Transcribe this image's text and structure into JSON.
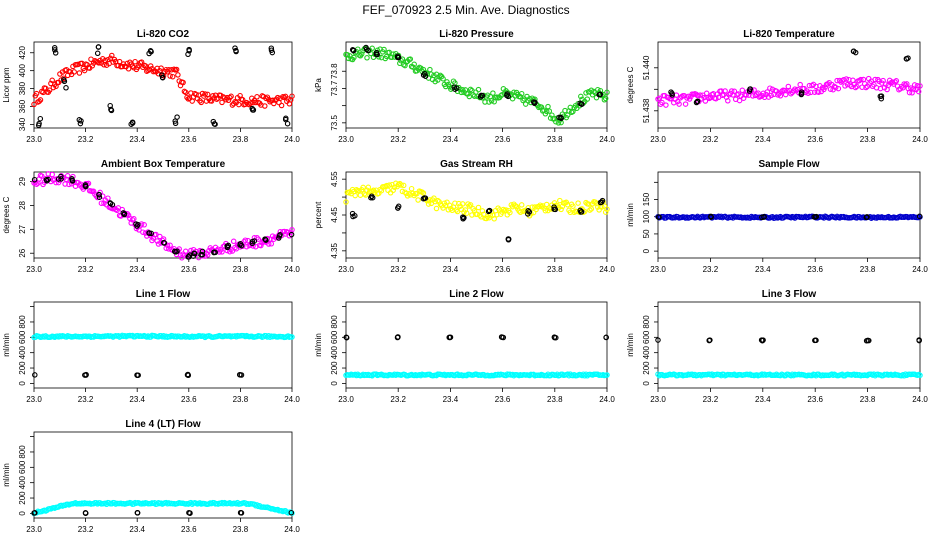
{
  "title": "FEF_070923  2.5 Min. Ave. Diagnostics",
  "colors": {
    "red": "#ff0000",
    "green": "#22cc22",
    "magenta": "#ff00ff",
    "yellow": "#ffff00",
    "blue": "#0000cc",
    "cyan": "#00ffff",
    "black": "#000000"
  },
  "chart_data": [
    {
      "type": "scatter",
      "title": "Li-820 CO2",
      "ylabel": "Licor ppm",
      "xlim": [
        23.0,
        24.0
      ],
      "ylim": [
        336,
        432
      ],
      "xticks": [
        23.0,
        23.2,
        23.4,
        23.6,
        23.8,
        24.0
      ],
      "yticks": [
        340,
        360,
        380,
        400,
        420
      ],
      "series": [
        {
          "color": "red",
          "x": [
            23.0,
            23.05,
            23.1,
            23.15,
            23.2,
            23.25,
            23.3,
            23.35,
            23.4,
            23.45,
            23.5,
            23.55,
            23.58,
            23.6,
            23.65,
            23.7,
            23.8,
            23.9,
            24.0
          ],
          "y": [
            367,
            378,
            392,
            400,
            405,
            410,
            412,
            408,
            405,
            402,
            400,
            398,
            380,
            372,
            370,
            368,
            367,
            366,
            367
          ]
        },
        {
          "color": "black",
          "x": [
            23.02,
            23.08,
            23.12,
            23.18,
            23.25,
            23.3,
            23.38,
            23.45,
            23.5,
            23.55,
            23.6,
            23.7,
            23.78,
            23.85,
            23.92,
            23.98
          ],
          "y": [
            340,
            425,
            385,
            340,
            425,
            355,
            340,
            425,
            390,
            340,
            425,
            340,
            425,
            355,
            425,
            340
          ]
        }
      ]
    },
    {
      "type": "scatter",
      "title": "Li-820 Pressure",
      "ylabel": "kPa",
      "xlim": [
        23.0,
        24.0
      ],
      "ylim": [
        73.47,
        73.97
      ],
      "xticks": [
        23.0,
        23.2,
        23.4,
        23.6,
        23.8,
        24.0
      ],
      "yticks": [
        73.5,
        73.6,
        73.7,
        73.8
      ],
      "ytick_labels": [
        "73.5",
        "",
        "73.7",
        "73.8"
      ],
      "series": [
        {
          "color": "green",
          "x": [
            23.0,
            23.05,
            23.1,
            23.15,
            23.2,
            23.25,
            23.3,
            23.35,
            23.4,
            23.45,
            23.5,
            23.55,
            23.6,
            23.65,
            23.7,
            23.75,
            23.8,
            23.82,
            23.85,
            23.9,
            23.95,
            24.0
          ],
          "y": [
            73.89,
            73.9,
            73.91,
            73.9,
            73.87,
            73.84,
            73.8,
            73.76,
            73.72,
            73.69,
            73.67,
            73.64,
            73.67,
            73.65,
            73.63,
            73.6,
            73.53,
            73.52,
            73.57,
            73.63,
            73.67,
            73.65
          ]
        },
        {
          "color": "black",
          "x": [
            23.03,
            23.08,
            23.12,
            23.2,
            23.3,
            23.42,
            23.52,
            23.62,
            23.72,
            23.82,
            23.9,
            23.97
          ],
          "y": [
            73.92,
            73.93,
            73.9,
            73.88,
            73.78,
            73.7,
            73.65,
            73.66,
            73.62,
            73.52,
            73.61,
            73.67
          ]
        }
      ]
    },
    {
      "type": "scatter",
      "title": "Li-820 Temperature",
      "ylabel": "degrees C",
      "xlim": [
        23.0,
        24.0
      ],
      "ylim": [
        51.4372,
        51.4412
      ],
      "xticks": [
        23.0,
        23.2,
        23.4,
        23.6,
        23.8,
        24.0
      ],
      "yticks": [
        51.438,
        51.439,
        51.44
      ],
      "ytick_labels": [
        "51.438",
        "",
        "51.440"
      ],
      "series": [
        {
          "color": "magenta",
          "x": [
            23.0,
            23.1,
            23.2,
            23.3,
            23.4,
            23.5,
            23.6,
            23.7,
            23.8,
            23.9,
            24.0
          ],
          "y": [
            51.4385,
            51.4385,
            51.4387,
            51.4387,
            51.4388,
            51.439,
            51.439,
            51.4393,
            51.4393,
            51.4392,
            51.439
          ]
        },
        {
          "color": "black",
          "x": [
            23.05,
            23.15,
            23.35,
            23.55,
            23.75,
            23.85,
            23.95
          ],
          "y": [
            51.4388,
            51.4384,
            51.439,
            51.4388,
            51.4408,
            51.4386,
            51.4404
          ]
        }
      ]
    },
    {
      "type": "scatter",
      "title": "Ambient Box Temperature",
      "ylabel": "degrees C",
      "xlim": [
        23.0,
        24.0
      ],
      "ylim": [
        25.8,
        29.4
      ],
      "xticks": [
        23.0,
        23.2,
        23.4,
        23.6,
        23.8,
        24.0
      ],
      "yticks": [
        26,
        27,
        28,
        29
      ],
      "series": [
        {
          "color": "magenta",
          "x": [
            23.0,
            23.05,
            23.1,
            23.15,
            23.2,
            23.25,
            23.3,
            23.35,
            23.4,
            23.45,
            23.5,
            23.55,
            23.6,
            23.62,
            23.65,
            23.7,
            23.75,
            23.8,
            23.85,
            23.9,
            23.95,
            24.0
          ],
          "y": [
            29.0,
            29.1,
            29.15,
            29.05,
            28.8,
            28.4,
            28.0,
            27.6,
            27.2,
            26.8,
            26.4,
            26.1,
            25.9,
            25.95,
            26.0,
            26.1,
            26.25,
            26.35,
            26.45,
            26.55,
            26.7,
            26.8
          ]
        },
        {
          "color": "black",
          "x": [
            23.0,
            23.05,
            23.1,
            23.15,
            23.2,
            23.25,
            23.3,
            23.35,
            23.4,
            23.45,
            23.5,
            23.55,
            23.6,
            23.62,
            23.65,
            23.7,
            23.75,
            23.8,
            23.85,
            23.9,
            23.95,
            24.0
          ],
          "y": [
            29.0,
            29.1,
            29.15,
            29.05,
            28.8,
            28.4,
            28.0,
            27.6,
            27.2,
            26.8,
            26.4,
            26.1,
            25.9,
            25.95,
            26.0,
            26.1,
            26.25,
            26.35,
            26.45,
            26.55,
            26.7,
            26.8
          ]
        }
      ]
    },
    {
      "type": "scatter",
      "title": "Gas Stream RH",
      "ylabel": "percent",
      "xlim": [
        23.0,
        24.0
      ],
      "ylim": [
        4.33,
        4.57
      ],
      "xticks": [
        23.0,
        23.2,
        23.4,
        23.6,
        23.8,
        24.0
      ],
      "yticks": [
        4.35,
        4.4,
        4.45,
        4.5,
        4.55
      ],
      "ytick_labels": [
        "4.35",
        "",
        "4.45",
        "",
        "4.55"
      ],
      "series": [
        {
          "color": "yellow",
          "x": [
            23.0,
            23.05,
            23.1,
            23.15,
            23.2,
            23.25,
            23.3,
            23.35,
            23.4,
            23.45,
            23.5,
            23.55,
            23.6,
            23.65,
            23.7,
            23.75,
            23.8,
            23.85,
            23.9,
            23.95,
            24.0
          ],
          "y": [
            4.5,
            4.52,
            4.51,
            4.52,
            4.53,
            4.51,
            4.5,
            4.48,
            4.47,
            4.47,
            4.46,
            4.45,
            4.46,
            4.47,
            4.46,
            4.47,
            4.48,
            4.47,
            4.47,
            4.48,
            4.47
          ]
        },
        {
          "color": "black",
          "x": [
            23.03,
            23.1,
            23.2,
            23.3,
            23.45,
            23.55,
            23.62,
            23.7,
            23.8,
            23.9,
            23.98
          ],
          "y": [
            4.45,
            4.5,
            4.47,
            4.5,
            4.44,
            4.46,
            4.38,
            4.46,
            4.47,
            4.46,
            4.49
          ]
        }
      ]
    },
    {
      "type": "scatter",
      "title": "Sample Flow",
      "ylabel": "ml/min",
      "xlim": [
        23.0,
        24.0
      ],
      "ylim": [
        -20,
        230
      ],
      "xticks": [
        23.0,
        23.2,
        23.4,
        23.6,
        23.8,
        24.0
      ],
      "yticks": [
        0,
        50,
        100,
        150,
        200
      ],
      "ytick_labels": [
        "0",
        "50",
        "100",
        "150",
        ""
      ],
      "series": [
        {
          "color": "blue",
          "x": [
            23.0,
            23.2,
            23.4,
            23.6,
            23.8,
            24.0
          ],
          "y": [
            98,
            99,
            98,
            99,
            98,
            99
          ]
        },
        {
          "color": "black",
          "x": [
            23.0,
            23.2,
            23.4,
            23.6,
            23.8,
            24.0
          ],
          "y": [
            99,
            100,
            99,
            100,
            99,
            100
          ]
        }
      ]
    },
    {
      "type": "scatter",
      "title": "Line 1 Flow",
      "ylabel": "ml/min",
      "xlim": [
        23.0,
        24.0
      ],
      "ylim": [
        -60,
        1060
      ],
      "xticks": [
        23.0,
        23.2,
        23.4,
        23.6,
        23.8,
        24.0
      ],
      "yticks": [
        0,
        200,
        400,
        600,
        800,
        1000
      ],
      "ytick_labels": [
        "0",
        "200",
        "400",
        "600",
        "800",
        ""
      ],
      "series": [
        {
          "color": "cyan",
          "x": [
            23.0,
            23.2,
            23.4,
            23.6,
            23.8,
            24.0
          ],
          "y": [
            610,
            612,
            615,
            610,
            612,
            610
          ]
        },
        {
          "color": "black",
          "x": [
            23.0,
            23.2,
            23.4,
            23.6,
            23.8,
            24.0
          ],
          "y": [
            110,
            110,
            110,
            110,
            110,
            110
          ]
        }
      ]
    },
    {
      "type": "scatter",
      "title": "Line 2 Flow",
      "ylabel": "ml/min",
      "xlim": [
        23.0,
        24.0
      ],
      "ylim": [
        -60,
        1060
      ],
      "xticks": [
        23.0,
        23.2,
        23.4,
        23.6,
        23.8,
        24.0
      ],
      "yticks": [
        0,
        200,
        400,
        600,
        800,
        1000
      ],
      "ytick_labels": [
        "0",
        "200",
        "400",
        "600",
        "800",
        ""
      ],
      "series": [
        {
          "color": "cyan",
          "x": [
            23.0,
            23.2,
            23.4,
            23.6,
            23.8,
            24.0
          ],
          "y": [
            110,
            110,
            110,
            110,
            110,
            110
          ]
        },
        {
          "color": "black",
          "x": [
            23.0,
            23.2,
            23.4,
            23.6,
            23.8,
            24.0
          ],
          "y": [
            600,
            600,
            600,
            600,
            600,
            600
          ]
        }
      ]
    },
    {
      "type": "scatter",
      "title": "Line 3 Flow",
      "ylabel": "ml/min",
      "xlim": [
        23.0,
        24.0
      ],
      "ylim": [
        -60,
        1060
      ],
      "xticks": [
        23.0,
        23.2,
        23.4,
        23.6,
        23.8,
        24.0
      ],
      "yticks": [
        0,
        200,
        400,
        600,
        800,
        1000
      ],
      "ytick_labels": [
        "0",
        "200",
        "400",
        "600",
        "800",
        ""
      ],
      "series": [
        {
          "color": "cyan",
          "x": [
            23.0,
            23.2,
            23.4,
            23.6,
            23.8,
            24.0
          ],
          "y": [
            110,
            110,
            110,
            110,
            110,
            110
          ]
        },
        {
          "color": "black",
          "x": [
            23.0,
            23.2,
            23.4,
            23.6,
            23.8,
            24.0
          ],
          "y": [
            560,
            560,
            560,
            560,
            560,
            560
          ]
        }
      ]
    },
    {
      "type": "scatter",
      "title": "Line 4 (LT) Flow",
      "ylabel": "ml/min",
      "xlim": [
        23.0,
        24.0
      ],
      "ylim": [
        -60,
        1060
      ],
      "xticks": [
        23.0,
        23.2,
        23.4,
        23.6,
        23.8,
        24.0
      ],
      "yticks": [
        0,
        200,
        400,
        600,
        800,
        1000
      ],
      "ytick_labels": [
        "0",
        "200",
        "400",
        "600",
        "800",
        ""
      ],
      "series": [
        {
          "color": "cyan",
          "x": [
            23.0,
            23.15,
            23.5,
            23.83,
            24.0
          ],
          "y": [
            5,
            130,
            130,
            130,
            5
          ]
        },
        {
          "color": "black",
          "x": [
            23.0,
            23.2,
            23.4,
            23.6,
            23.8,
            24.0
          ],
          "y": [
            5,
            5,
            5,
            5,
            5,
            5
          ]
        }
      ]
    }
  ]
}
